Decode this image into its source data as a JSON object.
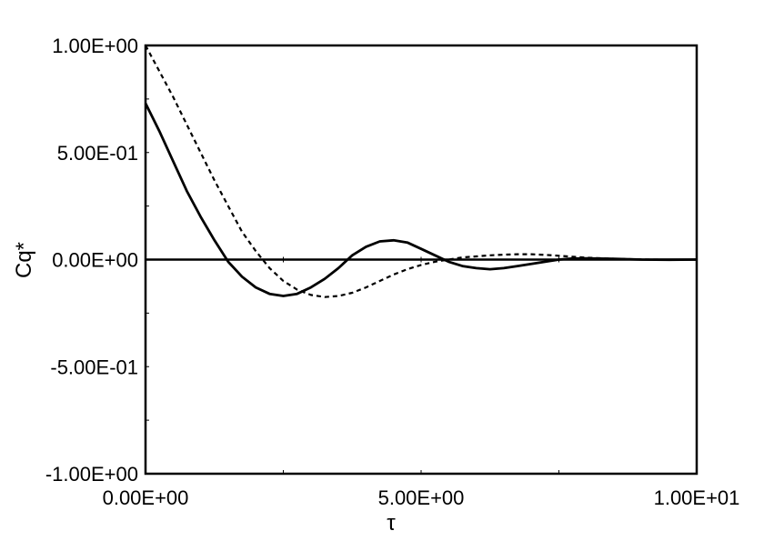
{
  "chart_data": {
    "type": "line",
    "title": "",
    "xlabel": "τ",
    "ylabel": "Cq*",
    "xlim": [
      0,
      10
    ],
    "ylim": [
      -1,
      1
    ],
    "x_ticks": [
      {
        "value": 0,
        "label": "0.00E+00"
      },
      {
        "value": 5,
        "label": "5.00E+00"
      },
      {
        "value": 10,
        "label": "1.00E+01"
      }
    ],
    "y_ticks": [
      {
        "value": 1,
        "label": "1.00E+00"
      },
      {
        "value": 0.5,
        "label": "5.00E-01"
      },
      {
        "value": 0,
        "label": "0.00E+00"
      },
      {
        "value": -0.5,
        "label": "-5.00E-01"
      },
      {
        "value": -1,
        "label": "-1.00E+00"
      }
    ],
    "zero_line": true,
    "grid": false,
    "legend": "none",
    "series": [
      {
        "style": "solid",
        "color": "#000000",
        "x": [
          0,
          0.25,
          0.5,
          0.75,
          1.0,
          1.25,
          1.5,
          1.75,
          2.0,
          2.25,
          2.5,
          2.75,
          3.0,
          3.25,
          3.5,
          3.75,
          4.0,
          4.25,
          4.5,
          4.75,
          5.0,
          5.25,
          5.5,
          5.75,
          6.0,
          6.25,
          6.5,
          6.75,
          7.0,
          7.25,
          7.5,
          7.75,
          8.0,
          8.5,
          9.0,
          9.5,
          10.0
        ],
        "y": [
          0.73,
          0.6,
          0.46,
          0.32,
          0.2,
          0.09,
          -0.01,
          -0.08,
          -0.13,
          -0.16,
          -0.17,
          -0.16,
          -0.13,
          -0.09,
          -0.04,
          0.02,
          0.06,
          0.085,
          0.09,
          0.08,
          0.05,
          0.02,
          -0.01,
          -0.03,
          -0.04,
          -0.045,
          -0.04,
          -0.03,
          -0.02,
          -0.01,
          0.0,
          0.005,
          0.006,
          0.004,
          0.0,
          -0.001,
          0.0
        ]
      },
      {
        "style": "dashed",
        "color": "#000000",
        "x": [
          0,
          0.25,
          0.5,
          0.75,
          1.0,
          1.25,
          1.5,
          1.75,
          2.0,
          2.25,
          2.5,
          2.75,
          3.0,
          3.25,
          3.5,
          3.75,
          4.0,
          4.25,
          4.5,
          4.75,
          5.0,
          5.25,
          5.5,
          5.75,
          6.0,
          6.25,
          6.5,
          6.75,
          7.0,
          7.25,
          7.5,
          7.75,
          8.0,
          8.5,
          9.0,
          9.5,
          10.0
        ],
        "y": [
          1.0,
          0.88,
          0.76,
          0.63,
          0.5,
          0.37,
          0.25,
          0.13,
          0.04,
          -0.04,
          -0.1,
          -0.14,
          -0.165,
          -0.175,
          -0.17,
          -0.155,
          -0.13,
          -0.1,
          -0.07,
          -0.045,
          -0.025,
          -0.01,
          0.0,
          0.01,
          0.015,
          0.02,
          0.023,
          0.025,
          0.025,
          0.022,
          0.018,
          0.013,
          0.009,
          0.004,
          0.001,
          -0.001,
          0.0
        ]
      }
    ]
  }
}
